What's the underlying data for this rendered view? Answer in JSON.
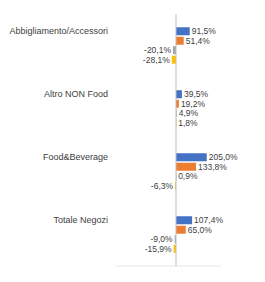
{
  "chart_data": {
    "type": "bar",
    "orientation": "horizontal",
    "data_labels": true,
    "tick_labels": "y",
    "grid": false,
    "categories": [
      "Abbigliamento/Accessori",
      "Altro NON Food",
      "Food&Beverage",
      "Totale Negozi"
    ],
    "xlim": [
      -400,
      300
    ],
    "series": [
      {
        "color": "#4472c4",
        "values": [
          91.5,
          39.5,
          205.0,
          107.4
        ],
        "value_labels": [
          "91,5%",
          "39,5%",
          "205,0%",
          "107,4%"
        ]
      },
      {
        "color": "#ed7d31",
        "values": [
          51.4,
          19.2,
          133.8,
          65.0
        ],
        "value_labels": [
          "51,4%",
          "19,2%",
          "133,8%",
          "65,0%"
        ]
      },
      {
        "color": "#a5a5a5",
        "values": [
          -20.1,
          4.9,
          0.9,
          -9.0
        ],
        "value_labels": [
          "-20,1%",
          "4,9%",
          "0,9%",
          "-9,0%"
        ]
      },
      {
        "color": "#ffc000",
        "values": [
          -28.1,
          1.8,
          -6.3,
          -15.9
        ],
        "value_labels": [
          "-28,1%",
          "1,8%",
          "-6,3%",
          "-15,9%"
        ]
      }
    ]
  }
}
